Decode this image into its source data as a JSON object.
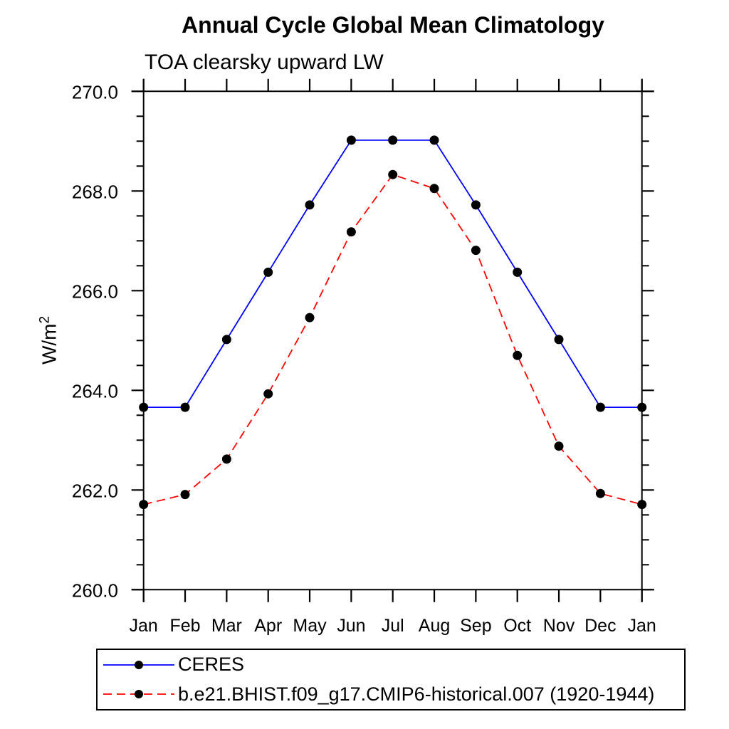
{
  "page": {
    "background": "#ffffff"
  },
  "chart_data": {
    "type": "line",
    "title": "Annual Cycle Global Mean Climatology",
    "subtitle": "TOA clearsky upward LW",
    "ylabel_base": "W/m",
    "ylabel_exponent": "2",
    "categories": [
      "Jan",
      "Feb",
      "Mar",
      "Apr",
      "May",
      "Jun",
      "Jul",
      "Aug",
      "Sep",
      "Oct",
      "Nov",
      "Dec",
      "Jan"
    ],
    "ylim": [
      260.0,
      270.0
    ],
    "yticks_major": [
      260.0,
      262.0,
      264.0,
      266.0,
      268.0,
      270.0
    ],
    "ytick_labels": [
      "260.0",
      "262.0",
      "264.0",
      "266.0",
      "268.0",
      "270.0"
    ],
    "ytick_minor_step": 0.5,
    "grid": false,
    "legend_position": "bottom-left",
    "axis_color": "#000000",
    "marker_color": "#000000",
    "series": [
      {
        "name": "CERES",
        "color": "#0000ff",
        "line_style": "solid",
        "marker": "filled-circle",
        "values": [
          263.66,
          263.66,
          265.02,
          266.37,
          267.72,
          269.02,
          269.02,
          269.02,
          267.72,
          266.37,
          265.02,
          263.66,
          263.66
        ]
      },
      {
        "name": "b.e21.BHIST.f09_g17.CMIP6-historical.007 (1920-1944)",
        "color": "#ff0000",
        "line_style": "dashed",
        "marker": "filled-circle",
        "values": [
          261.71,
          261.91,
          262.62,
          263.93,
          265.46,
          267.18,
          268.33,
          268.05,
          266.81,
          264.7,
          262.88,
          261.93,
          261.71
        ]
      }
    ]
  }
}
